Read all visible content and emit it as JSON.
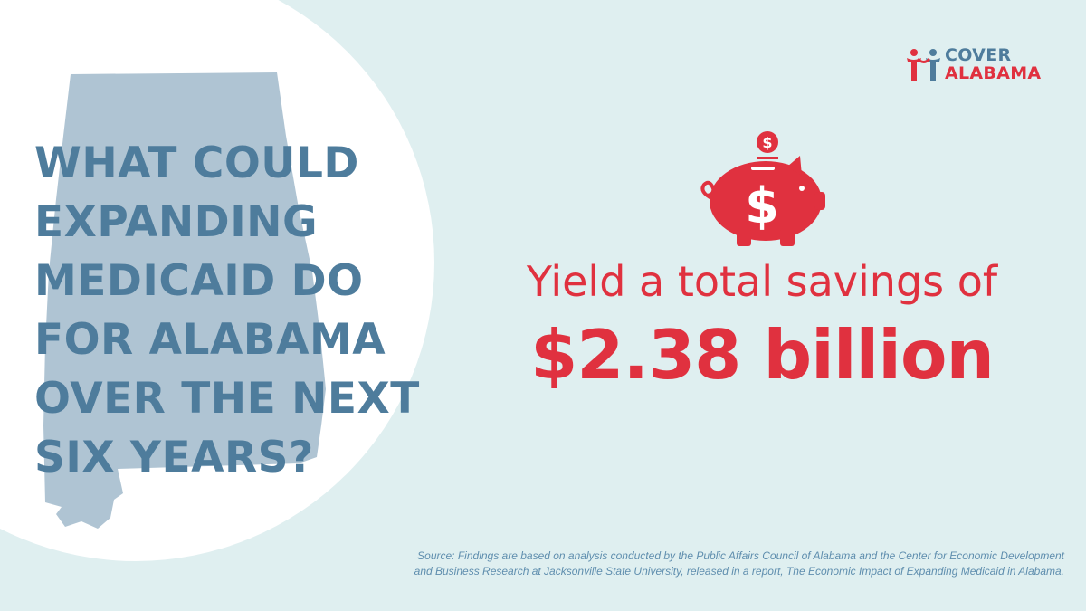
{
  "headline": {
    "lines": [
      "WHAT COULD",
      "EXPANDING",
      "MEDICAID DO",
      "FOR ALABAMA",
      "OVER THE NEXT",
      "SIX YEARS?"
    ]
  },
  "logo": {
    "line1": "COVER",
    "line2": "ALABAMA"
  },
  "main": {
    "statement": "Yield a total savings of",
    "amount": "$2.38 billion"
  },
  "source": {
    "line1": "Source: Findings are based on analysis conducted by the Public Affairs Council of Alabama and the Center for Economic Development",
    "line2": "and Business Research at Jacksonville State University, released in a report, The Economic Impact of Expanding Medicaid in Alabama."
  },
  "icons": {
    "map": "alabama-state-map",
    "piggy": "piggy-bank-dollar-icon",
    "logo": "cover-alabama-people-icon"
  },
  "colors": {
    "background": "#dfeff0",
    "circle": "#ffffff",
    "map": "#afc4d3",
    "headline": "#4e7c9c",
    "accent_red": "#e0313f",
    "source_text": "#5f8eae"
  }
}
